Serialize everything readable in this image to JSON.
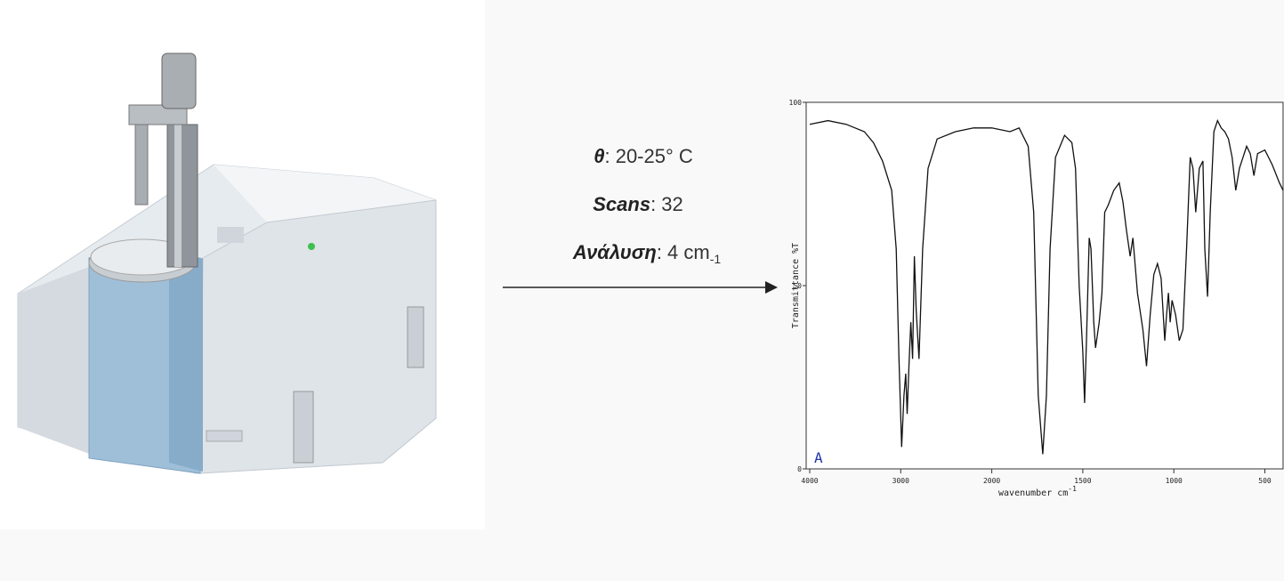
{
  "conditions": [
    {
      "label": "θ",
      "value": ": 20-25° C"
    },
    {
      "label": "Scans",
      "value": ": 32"
    },
    {
      "label": "Ανάλυση",
      "value": ": 4 cm",
      "sub": "-1"
    }
  ],
  "chart_data": {
    "type": "line",
    "xlabel": "wavenumber cm",
    "xlabel_sup": "-1",
    "ylabel": "Transmittance %T",
    "annotation": "A",
    "color": "#111111",
    "xlim": [
      4000,
      400
    ],
    "xticks": [
      4000,
      3000,
      2000,
      1500,
      1000,
      500
    ],
    "ylim": [
      0,
      100
    ],
    "yticks": [
      0,
      50,
      100
    ],
    "x": [
      4000,
      3800,
      3600,
      3400,
      3300,
      3200,
      3100,
      3050,
      3020,
      2990,
      2965,
      2945,
      2930,
      2910,
      2890,
      2870,
      2850,
      2830,
      2800,
      2760,
      2700,
      2600,
      2400,
      2200,
      2000,
      1900,
      1850,
      1800,
      1770,
      1745,
      1720,
      1700,
      1680,
      1650,
      1600,
      1560,
      1540,
      1520,
      1500,
      1490,
      1480,
      1465,
      1455,
      1440,
      1430,
      1410,
      1395,
      1380,
      1360,
      1330,
      1300,
      1280,
      1260,
      1240,
      1225,
      1200,
      1170,
      1150,
      1130,
      1110,
      1090,
      1070,
      1050,
      1040,
      1030,
      1020,
      1010,
      990,
      970,
      950,
      930,
      910,
      895,
      880,
      860,
      840,
      830,
      815,
      800,
      780,
      760,
      740,
      720,
      700,
      680,
      660,
      640,
      600,
      580,
      560,
      540,
      500,
      460,
      420,
      400
    ],
    "values": [
      94,
      95,
      94,
      92,
      89,
      84,
      76,
      60,
      30,
      6,
      20,
      26,
      15,
      28,
      40,
      30,
      58,
      43,
      30,
      60,
      82,
      90,
      92,
      93,
      93,
      92,
      93,
      88,
      70,
      20,
      4,
      20,
      60,
      85,
      91,
      89,
      82,
      50,
      32,
      18,
      35,
      63,
      60,
      40,
      33,
      40,
      48,
      70,
      72,
      76,
      78,
      73,
      65,
      58,
      63,
      48,
      38,
      28,
      42,
      53,
      56,
      52,
      35,
      42,
      48,
      40,
      46,
      42,
      35,
      38,
      60,
      85,
      82,
      70,
      82,
      84,
      60,
      47,
      70,
      92,
      95,
      93,
      92,
      90,
      85,
      76,
      82,
      88,
      86,
      80,
      86,
      87,
      83,
      78,
      76
    ]
  }
}
